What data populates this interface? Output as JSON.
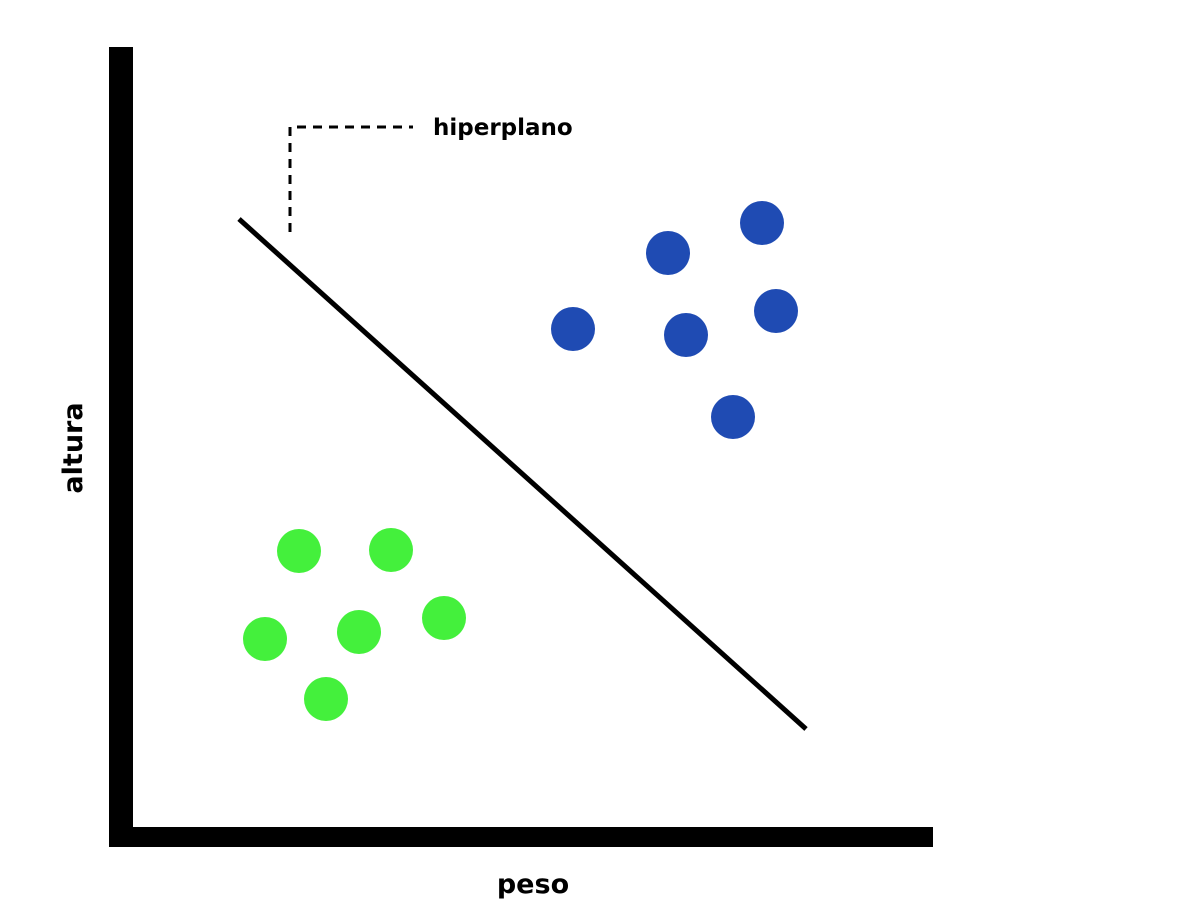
{
  "diagram": {
    "annotation_label": "hiperplano",
    "x_axis_label": "peso",
    "y_axis_label": "altura"
  },
  "colors": {
    "axis": "#000000",
    "hyperplane": "#000000",
    "class_a": "#1f4bb3",
    "class_b": "#44f03c",
    "background": "#ffffff"
  },
  "classes": [
    {
      "id": "class_a",
      "points_count": 6
    },
    {
      "id": "class_b",
      "points_count": 6
    }
  ]
}
